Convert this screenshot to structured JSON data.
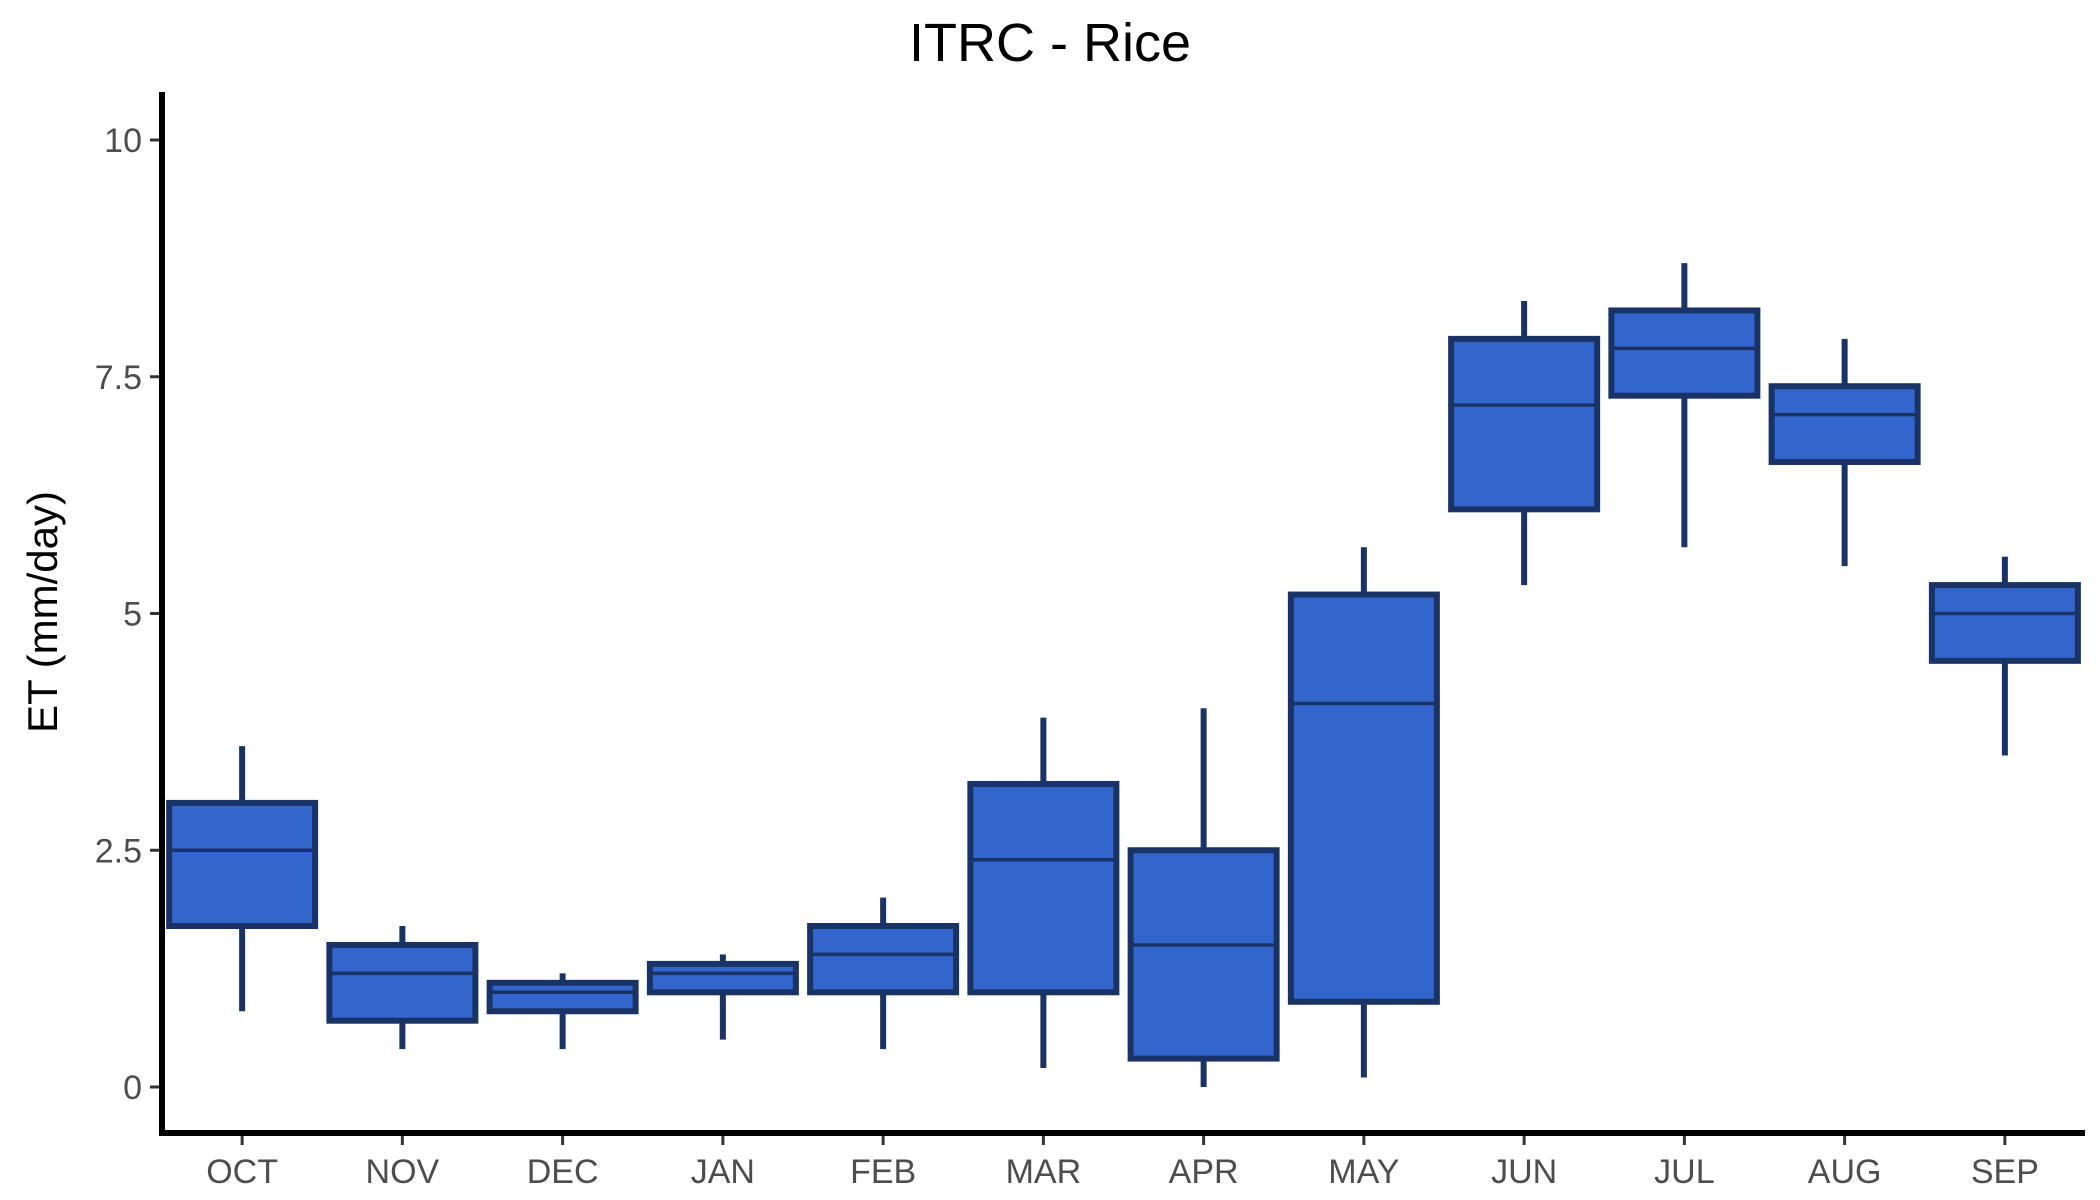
{
  "chart_data": {
    "type": "boxplot",
    "title": "ITRC - Rice",
    "xlabel": "",
    "ylabel": "ET (mm/day)",
    "ylim": [
      -0.5,
      10.5
    ],
    "yticks": [
      0,
      2.5,
      5,
      7.5,
      10
    ],
    "ytick_labels": [
      "0",
      "2.5",
      "5",
      "7.5",
      "10"
    ],
    "categories": [
      "OCT",
      "NOV",
      "DEC",
      "JAN",
      "FEB",
      "MAR",
      "APR",
      "MAY",
      "JUN",
      "JUL",
      "AUG",
      "SEP"
    ],
    "series": [
      {
        "boxes": [
          {
            "min": 0.8,
            "q1": 1.7,
            "median": 2.5,
            "q3": 3.0,
            "max": 3.6
          },
          {
            "min": 0.4,
            "q1": 0.7,
            "median": 1.2,
            "q3": 1.5,
            "max": 1.7
          },
          {
            "min": 0.4,
            "q1": 0.8,
            "median": 1.0,
            "q3": 1.1,
            "max": 1.2
          },
          {
            "min": 0.5,
            "q1": 1.0,
            "median": 1.2,
            "q3": 1.3,
            "max": 1.4
          },
          {
            "min": 0.4,
            "q1": 1.0,
            "median": 1.4,
            "q3": 1.7,
            "max": 2.0
          },
          {
            "min": 0.2,
            "q1": 1.0,
            "median": 2.4,
            "q3": 3.2,
            "max": 3.9
          },
          {
            "min": 0.0,
            "q1": 0.3,
            "median": 1.5,
            "q3": 2.5,
            "max": 4.0
          },
          {
            "min": 0.1,
            "q1": 0.9,
            "median": 4.05,
            "q3": 5.2,
            "max": 5.7
          },
          {
            "min": 5.3,
            "q1": 6.1,
            "median": 7.2,
            "q3": 7.9,
            "max": 8.3
          },
          {
            "min": 5.7,
            "q1": 7.3,
            "median": 7.8,
            "q3": 8.2,
            "max": 8.7
          },
          {
            "min": 5.5,
            "q1": 6.6,
            "median": 7.1,
            "q3": 7.4,
            "max": 7.9
          },
          {
            "min": 3.5,
            "q1": 4.5,
            "median": 5.0,
            "q3": 5.3,
            "max": 5.6
          }
        ]
      }
    ],
    "grid": false,
    "colors": {
      "box_fill": "#3366cc",
      "box_outline": "#1a3366",
      "axis": "#000000",
      "tick_text": "#4d4d4d"
    }
  }
}
